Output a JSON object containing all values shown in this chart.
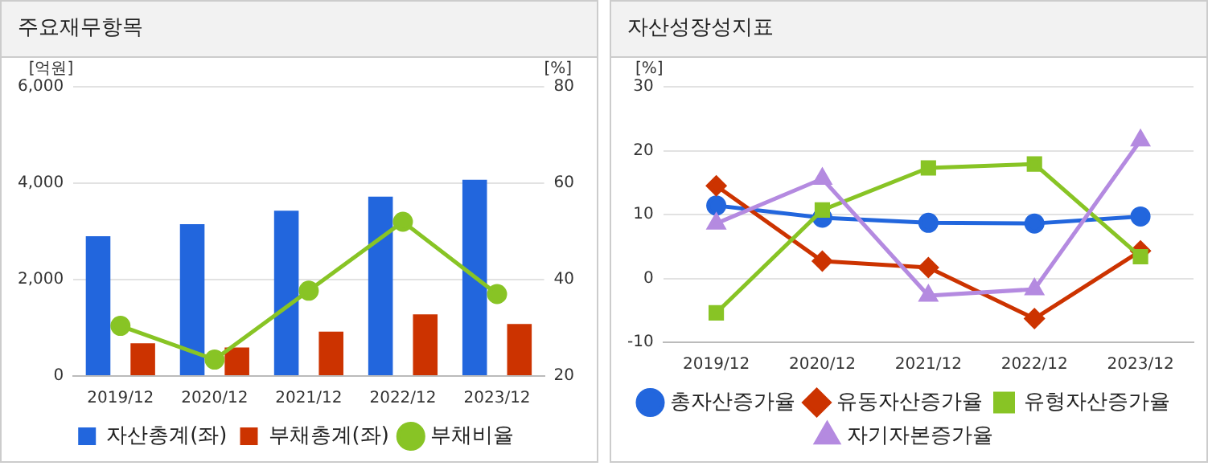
{
  "chart_data": [
    {
      "type": "bar",
      "title": "주요재무항목",
      "categories": [
        "2019/12",
        "2020/12",
        "2021/12",
        "2022/12",
        "2023/12"
      ],
      "ylabel": "[억원]",
      "y2label": "[%]",
      "series": [
        {
          "name": "자산총계(좌)",
          "color": "#2266dd",
          "values": [
            2900,
            3150,
            3430,
            3720,
            4070
          ]
        },
        {
          "name": "부채총계(좌)",
          "color": "#cc3300",
          "values": [
            680,
            590,
            920,
            1280,
            1080
          ]
        },
        {
          "name": "부채비율",
          "type": "line",
          "axis": "y2",
          "color": "#88c425",
          "marker": "circle",
          "values": [
            30.4,
            23.4,
            37.7,
            52.0,
            37.0
          ]
        }
      ],
      "ylim": [
        0,
        6000
      ],
      "yticks": [
        {
          "value": 0,
          "label": "0"
        },
        {
          "value": 2000,
          "label": "2,000"
        },
        {
          "value": 4000,
          "label": "4,000"
        },
        {
          "value": 6000,
          "label": "6,000"
        }
      ],
      "y2lim": [
        20,
        80
      ],
      "y2ticks": [
        20,
        40,
        60,
        80
      ],
      "grid": "y",
      "legend": "bottom"
    },
    {
      "type": "line",
      "title": "자산성장성지표",
      "categories": [
        "2019/12",
        "2020/12",
        "2021/12",
        "2022/12",
        "2023/12"
      ],
      "ylabel": "[%]",
      "series": [
        {
          "name": "총자산증가율",
          "color": "#2266dd",
          "marker": "circle",
          "values": [
            11.4,
            9.5,
            8.7,
            8.6,
            9.7
          ]
        },
        {
          "name": "유동자산증가율",
          "color": "#cc3300",
          "marker": "diamond",
          "values": [
            14.5,
            2.7,
            1.7,
            -6.3,
            4.3
          ]
        },
        {
          "name": "유형자산증가율",
          "color": "#88c425",
          "marker": "square",
          "values": [
            -5.4,
            10.7,
            17.3,
            17.9,
            3.4
          ]
        },
        {
          "name": "자기자본증가율",
          "color": "#b48ae0",
          "marker": "triangle",
          "values": [
            8.6,
            15.6,
            -2.7,
            -1.7,
            21.6
          ]
        }
      ],
      "ylim": [
        -10,
        30
      ],
      "yticks": [
        -10,
        0,
        10,
        20,
        30
      ],
      "grid": "y",
      "legend": "bottom"
    }
  ]
}
